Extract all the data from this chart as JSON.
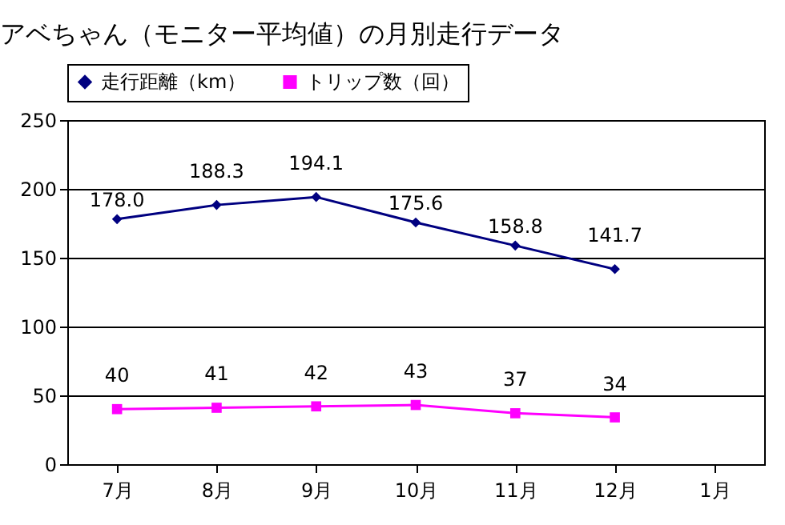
{
  "chart_data": {
    "type": "line",
    "title": "アベちゃん（モニター平均値）の月別走行データ",
    "categories": [
      "7月",
      "8月",
      "9月",
      "10月",
      "11月",
      "12月",
      "1月"
    ],
    "series": [
      {
        "name": "走行距離（km）",
        "color": "#000080",
        "marker": "diamond",
        "values": [
          178.0,
          188.3,
          194.1,
          175.6,
          158.8,
          141.7,
          null
        ],
        "value_labels": [
          "178.0",
          "188.3",
          "194.1",
          "175.6",
          "158.8",
          "141.7",
          null
        ]
      },
      {
        "name": "トリップ数（回）",
        "color": "#ff00ff",
        "marker": "square",
        "values": [
          40,
          41,
          42,
          43,
          37,
          34,
          null
        ],
        "value_labels": [
          "40",
          "41",
          "42",
          "43",
          "37",
          "34",
          null
        ]
      }
    ],
    "ylim": [
      0,
      250
    ],
    "yticks": [
      0,
      50,
      100,
      150,
      200,
      250
    ],
    "grid": "y",
    "legend": "top"
  }
}
